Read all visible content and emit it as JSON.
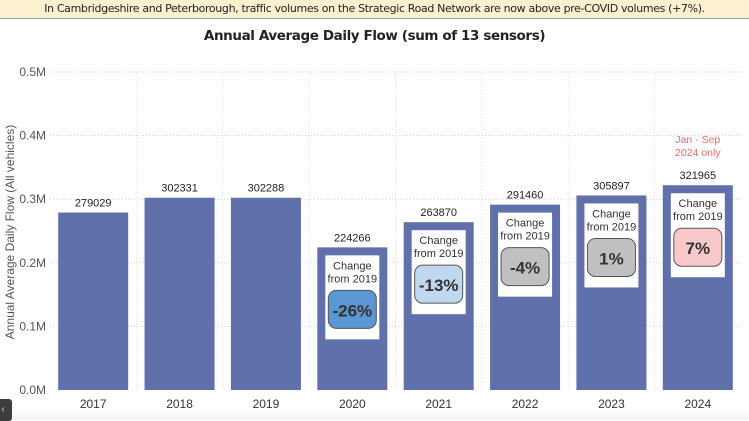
{
  "banner": {
    "text": "In Cambridgeshire and Peterborough, traffic volumes on the Strategic Road Network are now above pre-COVID volumes (+7%)."
  },
  "corner_button": {
    "icon": "collapse-icon",
    "glyph": "‹"
  },
  "chart_data": {
    "type": "bar",
    "title": "Annual Average Daily Flow (sum of 13 sensors)",
    "xlabel": "",
    "ylabel": "Annual Average Daily Flow (All vehicles)",
    "ylim": [
      0,
      500000
    ],
    "yticks": [
      {
        "value": 0,
        "label": "0.0M"
      },
      {
        "value": 100000,
        "label": "0.1M"
      },
      {
        "value": 200000,
        "label": "0.2M"
      },
      {
        "value": 300000,
        "label": "0.3M"
      },
      {
        "value": 400000,
        "label": "0.4M"
      },
      {
        "value": 500000,
        "label": "0.5M"
      }
    ],
    "grid": true,
    "bar_color": "#6070aa",
    "categories": [
      "2017",
      "2018",
      "2019",
      "2020",
      "2021",
      "2022",
      "2023",
      "2024"
    ],
    "values": [
      279029,
      302331,
      302288,
      224266,
      263870,
      291460,
      305897,
      321965
    ],
    "change_label": [
      "Change",
      "from 2019"
    ],
    "changes": [
      null,
      null,
      null,
      {
        "text": "-26%",
        "color": "#5b97d2"
      },
      {
        "text": "-13%",
        "color": "#c0d8ef"
      },
      {
        "text": "-4%",
        "color": "#c0c0c0"
      },
      {
        "text": "1%",
        "color": "#c0c0c0"
      },
      {
        "text": "7%",
        "color": "#f9c9c9"
      }
    ],
    "annotations": [
      {
        "category": "2024",
        "lines": [
          "Jan - Sep",
          "2024 only"
        ],
        "color": "#f06a6a"
      }
    ]
  }
}
